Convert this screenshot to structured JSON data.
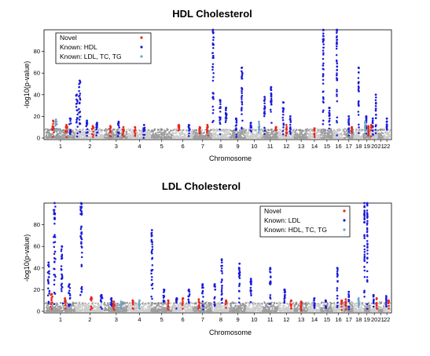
{
  "chart_data": [
    {
      "type": "scatter",
      "title": "HDL Cholesterol",
      "xlabel": "Chromosome",
      "ylabel": "-log10(p-value)",
      "ylim": [
        0,
        100
      ],
      "yticks": [
        0,
        20,
        40,
        60,
        80
      ],
      "significance_line": 7.3,
      "grid": false,
      "legend_position": "top-left",
      "chromosomes": [
        "1",
        "2",
        "3",
        "4",
        "5",
        "6",
        "7",
        "8",
        "9",
        "10",
        "11",
        "12",
        "13",
        "14",
        "15",
        "16",
        "17",
        "18",
        "19",
        "20",
        "21",
        "22"
      ],
      "legend": [
        {
          "name": "Novel",
          "color": "#e8261e"
        },
        {
          "name": "Known: HDL",
          "color": "#1a1adb"
        },
        {
          "name": "Known: LDL, TC, TG",
          "color": "#6aa6c8"
        }
      ],
      "series": [
        {
          "name": "Known: HDL",
          "color": "#1a1adb",
          "peaks": [
            {
              "chr": "1",
              "pos": 0.82,
              "value": 18
            },
            {
              "chr": "2",
              "pos": 0.05,
              "value": 40
            },
            {
              "chr": "2",
              "pos": 0.15,
              "value": 53
            },
            {
              "chr": "2",
              "pos": 0.4,
              "value": 16
            },
            {
              "chr": "2",
              "pos": 0.75,
              "value": 14
            },
            {
              "chr": "3",
              "pos": 0.6,
              "value": 15
            },
            {
              "chr": "4",
              "pos": 0.7,
              "value": 12
            },
            {
              "chr": "6",
              "pos": 0.8,
              "value": 12
            },
            {
              "chr": "8",
              "pos": 0.05,
              "value": 100
            },
            {
              "chr": "8",
              "pos": 0.45,
              "value": 35
            },
            {
              "chr": "8",
              "pos": 0.8,
              "value": 28
            },
            {
              "chr": "9",
              "pos": 0.4,
              "value": 18
            },
            {
              "chr": "9",
              "pos": 0.75,
              "value": 65
            },
            {
              "chr": "10",
              "pos": 0.3,
              "value": 14
            },
            {
              "chr": "11",
              "pos": 0.15,
              "value": 38
            },
            {
              "chr": "11",
              "pos": 0.55,
              "value": 47
            },
            {
              "chr": "12",
              "pos": 0.3,
              "value": 33
            },
            {
              "chr": "12",
              "pos": 0.75,
              "value": 20
            },
            {
              "chr": "15",
              "pos": 0.2,
              "value": 100
            },
            {
              "chr": "15",
              "pos": 0.7,
              "value": 28
            },
            {
              "chr": "16",
              "pos": 0.35,
              "value": 100
            },
            {
              "chr": "17",
              "pos": 0.5,
              "value": 20
            },
            {
              "chr": "18",
              "pos": 0.5,
              "value": 65
            },
            {
              "chr": "19",
              "pos": 0.4,
              "value": 20
            },
            {
              "chr": "20",
              "pos": 0.3,
              "value": 18
            },
            {
              "chr": "20",
              "pos": 0.7,
              "value": 40
            },
            {
              "chr": "22",
              "pos": 0.5,
              "value": 18
            }
          ]
        },
        {
          "name": "Known: LDL, TC, TG",
          "color": "#6aa6c8",
          "peaks": [
            {
              "chr": "1",
              "pos": 0.35,
              "value": 17
            },
            {
              "chr": "10",
              "pos": 0.8,
              "value": 15
            },
            {
              "chr": "19",
              "pos": 0.25,
              "value": 15
            }
          ]
        },
        {
          "name": "Novel",
          "color": "#e8261e",
          "peaks": [
            {
              "chr": "1",
              "pos": 0.25,
              "value": 16
            },
            {
              "chr": "1",
              "pos": 0.7,
              "value": 12
            },
            {
              "chr": "2",
              "pos": 0.6,
              "value": 11
            },
            {
              "chr": "3",
              "pos": 0.25,
              "value": 11
            },
            {
              "chr": "3",
              "pos": 0.8,
              "value": 10
            },
            {
              "chr": "4",
              "pos": 0.3,
              "value": 10
            },
            {
              "chr": "6",
              "pos": 0.3,
              "value": 12
            },
            {
              "chr": "7",
              "pos": 0.35,
              "value": 10
            },
            {
              "chr": "7",
              "pos": 0.75,
              "value": 12
            },
            {
              "chr": "11",
              "pos": 0.85,
              "value": 10
            },
            {
              "chr": "12",
              "pos": 0.5,
              "value": 12
            },
            {
              "chr": "14",
              "pos": 0.5,
              "value": 9
            },
            {
              "chr": "17",
              "pos": 0.8,
              "value": 10
            },
            {
              "chr": "19",
              "pos": 0.7,
              "value": 11
            },
            {
              "chr": "20",
              "pos": 0.1,
              "value": 12
            }
          ]
        }
      ]
    },
    {
      "type": "scatter",
      "title": "LDL Cholesterol",
      "xlabel": "Chromosome",
      "ylabel": "-log10(p-value)",
      "ylim": [
        0,
        100
      ],
      "yticks": [
        0,
        20,
        40,
        60,
        80
      ],
      "significance_line": 7.3,
      "grid": false,
      "legend_position": "top-right",
      "chromosomes": [
        "1",
        "2",
        "3",
        "4",
        "5",
        "6",
        "7",
        "8",
        "9",
        "10",
        "11",
        "12",
        "13",
        "14",
        "15",
        "16",
        "17",
        "18",
        "19",
        "20",
        "21",
        "22"
      ],
      "legend": [
        {
          "name": "Novel",
          "color": "#e8261e"
        },
        {
          "name": "Known: LDL",
          "color": "#1a1adb"
        },
        {
          "name": "Known: HDL, TC, TG",
          "color": "#6aa6c8"
        }
      ],
      "series": [
        {
          "name": "Known: LDL",
          "color": "#1a1adb",
          "peaks": [
            {
              "chr": "1",
              "pos": 0.1,
              "value": 45
            },
            {
              "chr": "1",
              "pos": 0.3,
              "value": 100
            },
            {
              "chr": "1",
              "pos": 0.55,
              "value": 60
            },
            {
              "chr": "1",
              "pos": 0.8,
              "value": 25
            },
            {
              "chr": "2",
              "pos": 0.2,
              "value": 100
            },
            {
              "chr": "2",
              "pos": 0.9,
              "value": 15
            },
            {
              "chr": "3",
              "pos": 0.3,
              "value": 12
            },
            {
              "chr": "5",
              "pos": 0.05,
              "value": 75
            },
            {
              "chr": "5",
              "pos": 0.6,
              "value": 20
            },
            {
              "chr": "6",
              "pos": 0.2,
              "value": 12
            },
            {
              "chr": "6",
              "pos": 0.8,
              "value": 20
            },
            {
              "chr": "7",
              "pos": 0.5,
              "value": 25
            },
            {
              "chr": "8",
              "pos": 0.15,
              "value": 25
            },
            {
              "chr": "8",
              "pos": 0.55,
              "value": 48
            },
            {
              "chr": "9",
              "pos": 0.6,
              "value": 44
            },
            {
              "chr": "10",
              "pos": 0.3,
              "value": 30
            },
            {
              "chr": "11",
              "pos": 0.5,
              "value": 40
            },
            {
              "chr": "12",
              "pos": 0.4,
              "value": 20
            },
            {
              "chr": "14",
              "pos": 0.5,
              "value": 12
            },
            {
              "chr": "15",
              "pos": 0.4,
              "value": 10
            },
            {
              "chr": "16",
              "pos": 0.4,
              "value": 40
            },
            {
              "chr": "17",
              "pos": 0.5,
              "value": 18
            },
            {
              "chr": "19",
              "pos": 0.15,
              "value": 100
            },
            {
              "chr": "19",
              "pos": 0.55,
              "value": 100
            },
            {
              "chr": "20",
              "pos": 0.4,
              "value": 15
            },
            {
              "chr": "22",
              "pos": 0.4,
              "value": 14
            }
          ]
        },
        {
          "name": "Known: HDL, TC, TG",
          "color": "#6aa6c8",
          "peaks": [
            {
              "chr": "3",
              "pos": 0.7,
              "value": 9
            },
            {
              "chr": "4",
              "pos": 0.5,
              "value": 10
            },
            {
              "chr": "18",
              "pos": 0.5,
              "value": 12
            }
          ]
        },
        {
          "name": "Novel",
          "color": "#e8261e",
          "peaks": [
            {
              "chr": "1",
              "pos": 0.2,
              "value": 16
            },
            {
              "chr": "1",
              "pos": 0.65,
              "value": 12
            },
            {
              "chr": "2",
              "pos": 0.55,
              "value": 13
            },
            {
              "chr": "3",
              "pos": 0.4,
              "value": 9
            },
            {
              "chr": "4",
              "pos": 0.2,
              "value": 10
            },
            {
              "chr": "5",
              "pos": 0.8,
              "value": 10
            },
            {
              "chr": "6",
              "pos": 0.5,
              "value": 12
            },
            {
              "chr": "7",
              "pos": 0.3,
              "value": 11
            },
            {
              "chr": "8",
              "pos": 0.8,
              "value": 10
            },
            {
              "chr": "12",
              "pos": 0.8,
              "value": 10
            },
            {
              "chr": "13",
              "pos": 0.5,
              "value": 9
            },
            {
              "chr": "16",
              "pos": 0.8,
              "value": 10
            },
            {
              "chr": "17",
              "pos": 0.2,
              "value": 11
            },
            {
              "chr": "20",
              "pos": 0.8,
              "value": 12
            },
            {
              "chr": "22",
              "pos": 0.8,
              "value": 10
            }
          ]
        }
      ]
    }
  ]
}
